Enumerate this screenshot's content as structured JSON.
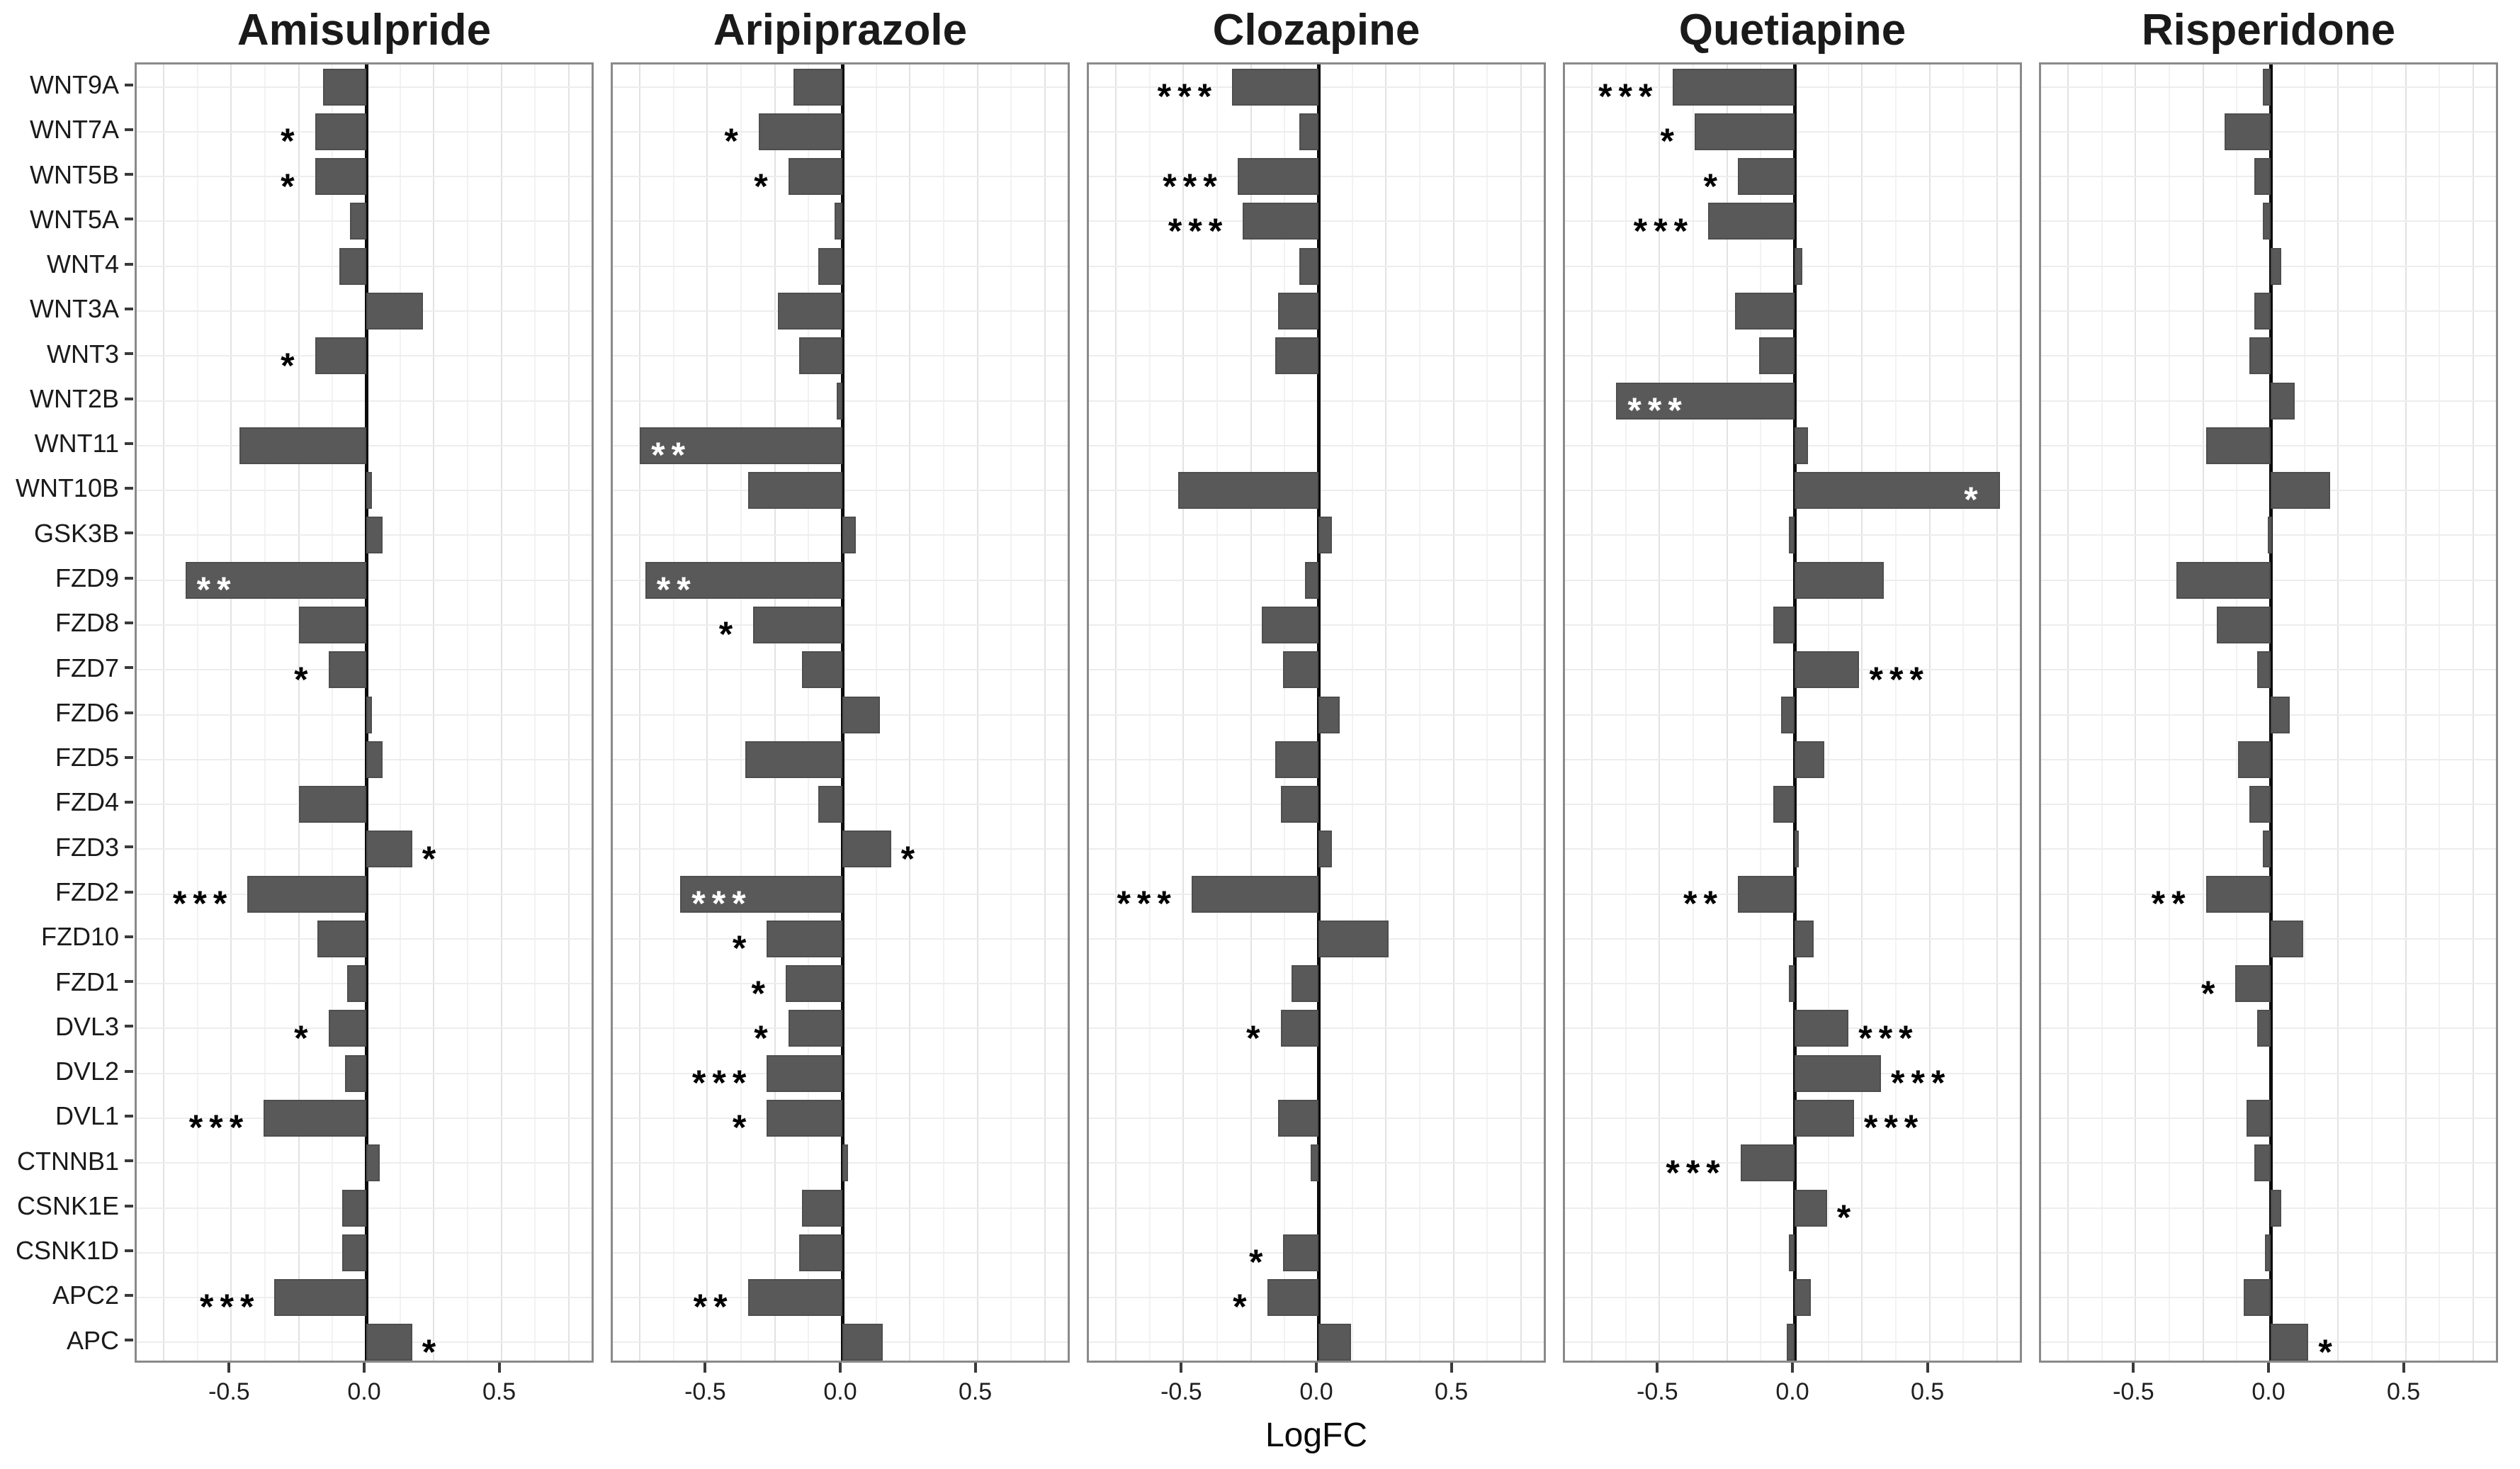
{
  "figure": {
    "xlabel": "LogFC",
    "x_tick_labels": [
      "-0.5",
      "0.0",
      "0.5"
    ],
    "bar_color": "#595959",
    "zero_line_color": "#0c0c0c",
    "star_color_outside": "#000000",
    "star_color_inside": "#ffffff"
  },
  "chart_data": {
    "type": "bar",
    "orientation": "horizontal",
    "title": "",
    "xlabel": "LogFC",
    "ylabel": "",
    "xlim": [
      -0.85,
      0.85
    ],
    "x_tick_values": [
      -0.5,
      0.0,
      0.5
    ],
    "x_tick_labels": [
      "-0.5",
      "0.0",
      "0.5"
    ],
    "grid": true,
    "categories": [
      "WNT9A",
      "WNT7A",
      "WNT5B",
      "WNT5A",
      "WNT4",
      "WNT3A",
      "WNT3",
      "WNT2B",
      "WNT11",
      "WNT10B",
      "GSK3B",
      "FZD9",
      "FZD8",
      "FZD7",
      "FZD6",
      "FZD5",
      "FZD4",
      "FZD3",
      "FZD2",
      "FZD10",
      "FZD1",
      "DVL3",
      "DVL2",
      "DVL1",
      "CTNNB1",
      "CSNK1E",
      "CSNK1D",
      "APC2",
      "APC"
    ],
    "series": [
      {
        "name": "Amisulpride",
        "values": [
          -0.16,
          -0.19,
          -0.19,
          -0.06,
          -0.1,
          0.21,
          -0.19,
          0.0,
          -0.47,
          0.02,
          0.06,
          -0.67,
          -0.25,
          -0.14,
          0.02,
          0.06,
          -0.25,
          0.17,
          -0.44,
          -0.18,
          -0.07,
          -0.14,
          -0.08,
          -0.38,
          0.05,
          -0.09,
          -0.09,
          -0.34,
          0.17
        ],
        "significance": [
          "",
          "*",
          "*",
          "",
          "",
          "",
          "*",
          "",
          "",
          "",
          "",
          "**",
          "",
          "*",
          "",
          "",
          "",
          "*",
          "***",
          "",
          "",
          "*",
          "",
          "***",
          "",
          "",
          "",
          "***",
          "*"
        ],
        "stars_inside_bar": [
          false,
          false,
          false,
          false,
          false,
          false,
          false,
          false,
          false,
          false,
          false,
          true,
          false,
          false,
          false,
          false,
          false,
          false,
          false,
          false,
          false,
          false,
          false,
          false,
          false,
          false,
          false,
          false,
          false
        ]
      },
      {
        "name": "Aripiprazole",
        "values": [
          -0.18,
          -0.31,
          -0.2,
          -0.03,
          -0.09,
          -0.24,
          -0.16,
          -0.02,
          -0.75,
          -0.35,
          0.05,
          -0.73,
          -0.33,
          -0.15,
          0.14,
          -0.36,
          -0.09,
          0.18,
          -0.6,
          -0.28,
          -0.21,
          -0.2,
          -0.28,
          -0.28,
          0.02,
          -0.15,
          -0.16,
          -0.35,
          0.15
        ],
        "significance": [
          "",
          "*",
          "*",
          "",
          "",
          "",
          "",
          "",
          "**",
          "",
          "",
          "**",
          "*",
          "",
          "",
          "",
          "",
          "*",
          "***",
          "*",
          "*",
          "*",
          "***",
          "*",
          "",
          "",
          "",
          "**",
          ""
        ],
        "stars_inside_bar": [
          false,
          false,
          false,
          false,
          false,
          false,
          false,
          false,
          true,
          false,
          false,
          true,
          false,
          false,
          false,
          false,
          false,
          false,
          true,
          false,
          false,
          false,
          false,
          false,
          false,
          false,
          false,
          false,
          false
        ]
      },
      {
        "name": "Clozapine",
        "values": [
          -0.32,
          -0.07,
          -0.3,
          -0.28,
          -0.07,
          -0.15,
          -0.16,
          0.0,
          0.0,
          -0.52,
          0.05,
          -0.05,
          -0.21,
          -0.13,
          0.08,
          -0.16,
          -0.14,
          0.05,
          -0.47,
          0.26,
          -0.1,
          -0.14,
          0.0,
          -0.15,
          -0.03,
          0.0,
          -0.13,
          -0.19,
          0.12
        ],
        "significance": [
          "***",
          "",
          "***",
          "***",
          "",
          "",
          "",
          "",
          "",
          "",
          "",
          "",
          "",
          "",
          "",
          "",
          "",
          "",
          "***",
          "",
          "",
          "*",
          "",
          "",
          "",
          "",
          "*",
          "*",
          ""
        ],
        "stars_inside_bar": [
          false,
          false,
          false,
          false,
          false,
          false,
          false,
          false,
          false,
          false,
          false,
          false,
          false,
          false,
          false,
          false,
          false,
          false,
          false,
          false,
          false,
          false,
          false,
          false,
          false,
          false,
          false,
          false,
          false
        ]
      },
      {
        "name": "Quetiapine",
        "values": [
          -0.45,
          -0.37,
          -0.21,
          -0.32,
          0.03,
          -0.22,
          -0.13,
          -0.66,
          0.05,
          0.76,
          -0.02,
          0.33,
          -0.08,
          0.24,
          -0.05,
          0.11,
          -0.08,
          0.01,
          -0.21,
          0.07,
          -0.02,
          0.2,
          0.32,
          0.22,
          -0.2,
          0.12,
          -0.02,
          0.06,
          -0.03
        ],
        "significance": [
          "***",
          "*",
          "*",
          "***",
          "",
          "",
          "",
          "***",
          "",
          "*",
          "",
          "",
          "",
          "***",
          "",
          "",
          "",
          "",
          "**",
          "",
          "",
          "***",
          "***",
          "***",
          "***",
          "*",
          "",
          "",
          ""
        ],
        "stars_inside_bar": [
          false,
          false,
          false,
          false,
          false,
          false,
          false,
          true,
          false,
          true,
          false,
          false,
          false,
          false,
          false,
          false,
          false,
          false,
          false,
          false,
          false,
          false,
          false,
          false,
          false,
          false,
          false,
          false,
          false
        ]
      },
      {
        "name": "Risperidone",
        "values": [
          -0.03,
          -0.17,
          -0.06,
          -0.03,
          0.04,
          -0.06,
          -0.08,
          0.09,
          -0.24,
          0.22,
          -0.01,
          -0.35,
          -0.2,
          -0.05,
          0.07,
          -0.12,
          -0.08,
          -0.03,
          -0.24,
          0.12,
          -0.13,
          -0.05,
          0.0,
          -0.09,
          -0.06,
          0.04,
          -0.02,
          -0.1,
          0.14
        ],
        "significance": [
          "",
          "",
          "",
          "",
          "",
          "",
          "",
          "",
          "",
          "",
          "",
          "",
          "",
          "",
          "",
          "",
          "",
          "",
          "**",
          "",
          "*",
          "",
          "",
          "",
          "",
          "",
          "",
          "",
          "*"
        ],
        "stars_inside_bar": [
          false,
          false,
          false,
          false,
          false,
          false,
          false,
          false,
          false,
          false,
          false,
          false,
          false,
          false,
          false,
          false,
          false,
          false,
          false,
          false,
          false,
          false,
          false,
          false,
          false,
          false,
          false,
          false,
          false
        ]
      }
    ],
    "legend": null,
    "notes": "Black asterisks sit outside the bar tip; white asterisks sit inside long bars."
  }
}
